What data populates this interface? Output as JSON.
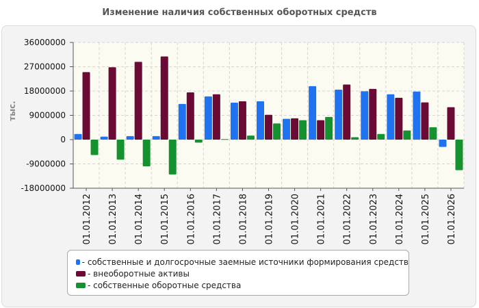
{
  "title": "Изменение наличия собственных оборотных средств",
  "chart_data": {
    "type": "bar",
    "ylabel": "тыс.",
    "ylim": [
      -18000000,
      36000000
    ],
    "yticks": [
      36000000,
      27000000,
      18000000,
      9000000,
      0,
      -9000000,
      -18000000
    ],
    "yticklabels": [
      "36000000",
      "27000000",
      "18000000",
      "9000000",
      "0",
      "-9000000",
      "-18000000"
    ],
    "grid": true,
    "legend_position": "bottom",
    "categories": [
      "01.01.2012",
      "01.01.2013",
      "01.01.2014",
      "01.01.2015",
      "01.01.2016",
      "01.01.2017",
      "01.01.2018",
      "01.01.2019",
      "01.01.2020",
      "01.01.2021",
      "01.01.2022",
      "01.01.2023",
      "01.01.2024",
      "01.01.2025",
      "01.01.2026"
    ],
    "series": [
      {
        "name": "- собственные и долгосрочные заемные источники формирования средств",
        "color": "#1f72f0",
        "values": [
          2100000,
          1100000,
          1300000,
          1300000,
          13200000,
          16000000,
          13700000,
          14200000,
          7700000,
          19800000,
          18500000,
          17900000,
          16800000,
          17800000,
          -2700000
        ]
      },
      {
        "name": "- внеоборотные активы",
        "color": "#6b0a35",
        "values": [
          25000000,
          26800000,
          28800000,
          30800000,
          17500000,
          16800000,
          14200000,
          9200000,
          7900000,
          7200000,
          20400000,
          18800000,
          15500000,
          13800000,
          12000000
        ]
      },
      {
        "name": "- собственные оборотные средства",
        "color": "#16912f",
        "values": [
          -5700000,
          -7400000,
          -9900000,
          -12900000,
          -1100000,
          200000,
          1500000,
          6000000,
          7200000,
          8400000,
          900000,
          2100000,
          3400000,
          4600000,
          -11300000
        ]
      }
    ]
  }
}
